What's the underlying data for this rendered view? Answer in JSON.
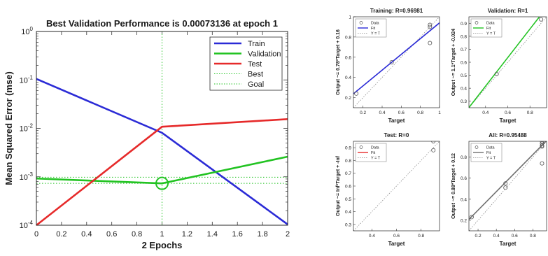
{
  "chart_data": [
    {
      "type": "line",
      "title": "Best Validation Performance is 0.00073136 at epoch 1",
      "xlabel": "2 Epochs",
      "ylabel": "Mean Squared Error  (mse)",
      "xlim": [
        0,
        2
      ],
      "ylim": [
        0.0001,
        1
      ],
      "yscale": "log",
      "x_ticks": [
        "0",
        "0.2",
        "0.4",
        "0.6",
        "0.8",
        "1",
        "1.2",
        "1.4",
        "1.6",
        "1.8",
        "2"
      ],
      "y_ticks": [
        {
          "base": "10",
          "exp": "0",
          "value": 1
        },
        {
          "base": "10",
          "exp": "-1",
          "value": 0.1
        },
        {
          "base": "10",
          "exp": "-2",
          "value": 0.01
        },
        {
          "base": "10",
          "exp": "-3",
          "value": 0.001
        },
        {
          "base": "10",
          "exp": "-4",
          "value": 0.0001
        }
      ],
      "legend_position": "top-right",
      "series": [
        {
          "name": "Train",
          "color": "#2b2bd6",
          "style": "solid",
          "x": [
            0,
            1,
            2
          ],
          "y": [
            0.105,
            0.0081,
            0.000104
          ]
        },
        {
          "name": "Validation",
          "color": "#22c322",
          "style": "solid",
          "x": [
            0,
            1,
            2
          ],
          "y": [
            0.00092,
            0.00073136,
            0.0026
          ]
        },
        {
          "name": "Test",
          "color": "#e62a2a",
          "style": "solid",
          "x": [
            0,
            1,
            2
          ],
          "y": [
            0.0001,
            0.0108,
            0.0155
          ]
        },
        {
          "name": "Best",
          "color": "#22c322",
          "style": "dotted",
          "x": [
            1,
            1
          ],
          "y": [
            0.0001,
            1
          ]
        },
        {
          "name": "Goal",
          "color": "#22c322",
          "style": "dotted",
          "x": [
            0,
            2
          ],
          "y": [
            0.00098,
            0.00098
          ]
        }
      ],
      "best_marker": {
        "x": 1,
        "y": 0.00073136,
        "color": "#22c322"
      },
      "best_hline": {
        "y": 0.00073136,
        "color": "#22c322"
      }
    },
    {
      "type": "scatter",
      "title": "Training: R=0.96981",
      "xlabel": "Target",
      "ylabel": "Output ~= 0.78*Target + 0.16",
      "xlim": [
        0.1,
        1
      ],
      "ylim": [
        0.1,
        1
      ],
      "x_ticks": [
        0.2,
        0.4,
        0.6,
        0.8,
        1
      ],
      "y_ticks": [
        0.2,
        0.4,
        0.6,
        0.8,
        1
      ],
      "fit_color": "#2b2bd6",
      "fit": {
        "slope": 0.78,
        "intercept": 0.16
      },
      "points": [
        [
          0.13,
          0.24
        ],
        [
          0.5,
          0.55
        ],
        [
          0.9,
          0.9
        ],
        [
          0.9,
          0.92
        ],
        [
          0.9,
          0.74
        ]
      ],
      "legend": [
        "Data",
        "Fit",
        "Y = T"
      ]
    },
    {
      "type": "scatter",
      "title": "Validation: R=1",
      "xlabel": "Target",
      "ylabel": "Output ~= 1.1*Target + -0.024",
      "xlim": [
        0.25,
        0.95
      ],
      "ylim": [
        0.25,
        0.95
      ],
      "x_ticks": [
        0.4,
        0.6,
        0.8
      ],
      "y_ticks": [
        0.3,
        0.4,
        0.5,
        0.6,
        0.7,
        0.8,
        0.9
      ],
      "fit_color": "#22c322",
      "fit": {
        "slope": 1.1,
        "intercept": -0.024
      },
      "points": [
        [
          0.5,
          0.51
        ],
        [
          0.9,
          0.93
        ]
      ],
      "legend": [
        "Data",
        "Fit",
        "Y = T"
      ]
    },
    {
      "type": "scatter",
      "title": "Test: R=0",
      "xlabel": "Target",
      "ylabel": "Output ~= Inf*Target + -Inf",
      "xlim": [
        0.25,
        0.95
      ],
      "ylim": [
        0.25,
        0.95
      ],
      "x_ticks": [
        0.4,
        0.6,
        0.8
      ],
      "y_ticks": [
        0.3,
        0.4,
        0.5,
        0.6,
        0.7,
        0.8,
        0.9
      ],
      "fit_color": "#e62a2a",
      "fit": null,
      "points": [
        [
          0.9,
          0.95
        ],
        [
          0.9,
          0.88
        ]
      ],
      "legend": [
        "Data",
        "Fit",
        "Y = T"
      ]
    },
    {
      "type": "scatter",
      "title": "All: R=0.95488",
      "xlabel": "Target",
      "ylabel": "Output ~= 0.88*Target + 0.12",
      "xlim": [
        0.1,
        0.95
      ],
      "ylim": [
        0.1,
        0.95
      ],
      "x_ticks": [
        0.2,
        0.4,
        0.6,
        0.8
      ],
      "y_ticks": [
        0.2,
        0.4,
        0.6,
        0.8
      ],
      "fit_color": "#6e6e6e",
      "fit": {
        "slope": 0.88,
        "intercept": 0.12
      },
      "points": [
        [
          0.13,
          0.23
        ],
        [
          0.5,
          0.55
        ],
        [
          0.5,
          0.51
        ],
        [
          0.9,
          0.95
        ],
        [
          0.9,
          0.91
        ],
        [
          0.9,
          0.9
        ],
        [
          0.9,
          0.74
        ],
        [
          0.9,
          0.93
        ]
      ],
      "legend": [
        "Data",
        "Fit",
        "Y = T"
      ]
    }
  ]
}
